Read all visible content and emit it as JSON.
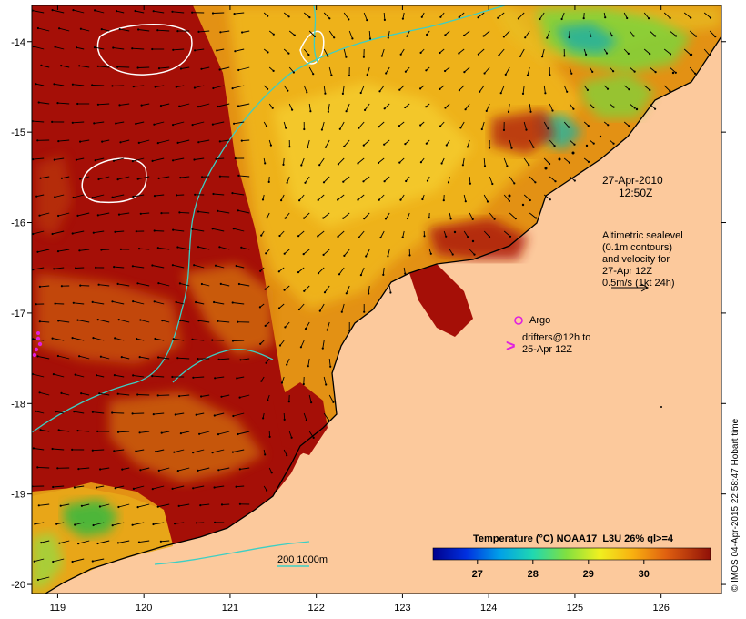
{
  "chart_data": {
    "type": "heatmap",
    "x_ticks": [
      119,
      120,
      121,
      122,
      123,
      124,
      125,
      126
    ],
    "y_ticks": [
      -14,
      -15,
      -16,
      -17,
      -18,
      -19,
      -20
    ],
    "xlim": [
      118.7,
      126.7
    ],
    "ylim": [
      -20.1,
      -13.6
    ],
    "colorbar": {
      "title": "Temperature (°C) NOAA17_L3U 26% ql>=4",
      "ticks": [
        27,
        28,
        29,
        30
      ],
      "range": [
        26.2,
        31.2
      ]
    }
  },
  "annotations": {
    "date_line1": "27-Apr-2010",
    "date_line2": "12:50Z",
    "sealevel_lines": [
      "Altimetric sealevel",
      "(0.1m contours)",
      "and velocity for",
      "27-Apr 12Z",
      "0.5m/s (1kt 24h)"
    ],
    "argo_label": "Argo",
    "drifters_line1": "drifters@12h to",
    "drifters_line2": "25-Apr 12Z",
    "drifter_symbol": ">",
    "depth_legend": "200  1000m",
    "credit": "© IMOS 04-Apr-2015 22:58:47 Hobart time"
  },
  "colors": {
    "land": "#fcc99c",
    "sst_hot": "#a50f07",
    "sst_warm": "#e08a10",
    "sst_mid": "#f2c21a",
    "sst_cool": "#7ed43a",
    "sst_cold": "#20b0a0",
    "isobath": "#3ccfc4",
    "argo": "#e020e0"
  }
}
